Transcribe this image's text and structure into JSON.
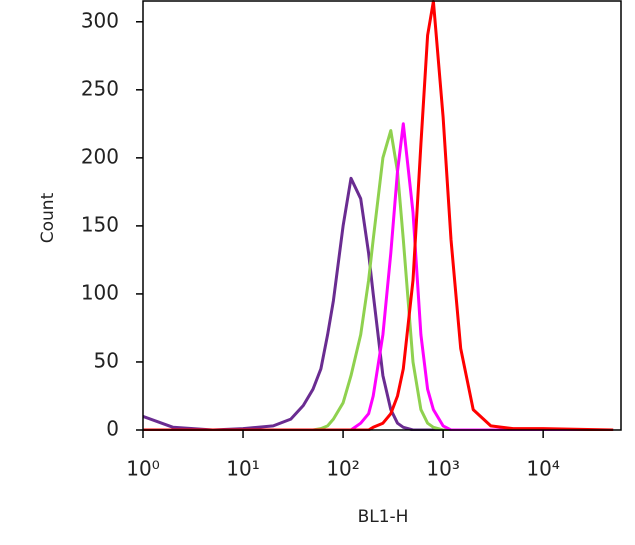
{
  "chart_data": {
    "type": "line",
    "x_label": "BL1-H",
    "y_label": "Count",
    "xscale": "log",
    "xlim": [
      1,
      60000
    ],
    "ylim": [
      0,
      316
    ],
    "xticks": [
      {
        "value": 1,
        "label": "10⁰"
      },
      {
        "value": 10,
        "label": "10¹"
      },
      {
        "value": 100,
        "label": "10²"
      },
      {
        "value": 1000,
        "label": "10³"
      },
      {
        "value": 10000,
        "label": "10⁴"
      }
    ],
    "yticks": [
      0,
      50,
      100,
      150,
      200,
      250,
      300
    ],
    "x": [
      1,
      2,
      5,
      10,
      20,
      30,
      40,
      50,
      60,
      70,
      80,
      100,
      120,
      150,
      180,
      200,
      250,
      300,
      350,
      400,
      500,
      600,
      700,
      800,
      1000,
      1200,
      1500,
      2000,
      3000,
      5000,
      10000,
      50000
    ],
    "series": [
      {
        "color": "#6a2c91",
        "values": [
          10,
          2,
          0,
          1,
          3,
          8,
          18,
          30,
          45,
          70,
          95,
          150,
          185,
          170,
          130,
          100,
          40,
          15,
          5,
          2,
          0,
          0,
          0,
          0,
          0,
          0,
          0,
          0,
          0,
          0,
          0,
          0
        ]
      },
      {
        "color": "#8fd14f",
        "values": [
          0,
          0,
          0,
          0,
          0,
          0,
          0,
          0,
          1,
          3,
          8,
          20,
          40,
          70,
          110,
          140,
          200,
          220,
          190,
          140,
          50,
          15,
          5,
          2,
          0,
          0,
          0,
          0,
          0,
          0,
          0,
          0
        ]
      },
      {
        "color": "#ff00ff",
        "values": [
          0,
          0,
          0,
          0,
          0,
          0,
          0,
          0,
          0,
          0,
          0,
          0,
          0,
          5,
          12,
          25,
          70,
          130,
          190,
          225,
          160,
          70,
          30,
          15,
          3,
          0,
          0,
          0,
          0,
          0,
          0,
          0
        ]
      },
      {
        "color": "#ff0000",
        "values": [
          0,
          0,
          0,
          0,
          0,
          0,
          0,
          0,
          0,
          0,
          0,
          0,
          0,
          0,
          0,
          2,
          5,
          12,
          25,
          45,
          110,
          210,
          290,
          315,
          230,
          140,
          60,
          15,
          3,
          1,
          1,
          0
        ]
      }
    ]
  }
}
